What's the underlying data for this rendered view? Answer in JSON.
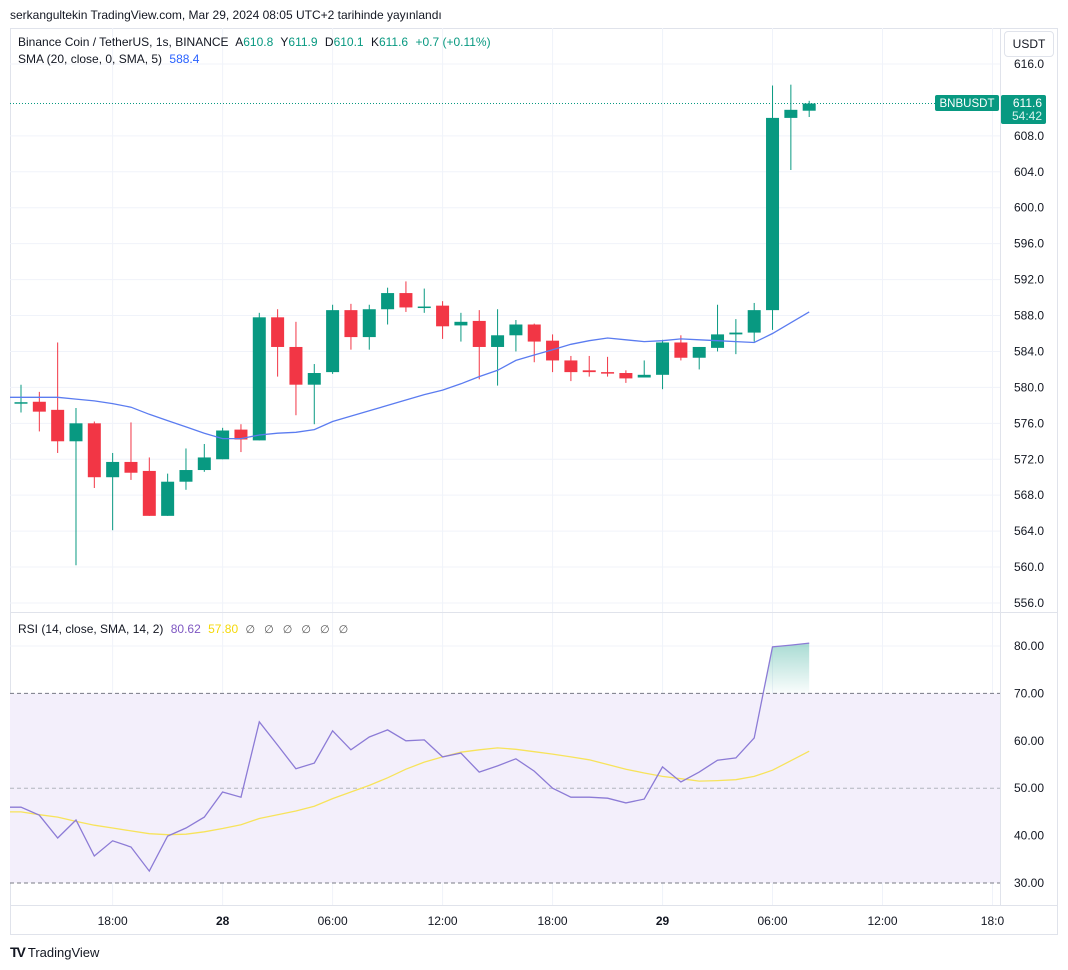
{
  "published": "serkangultekin TradingView.com, Mar 29, 2024 08:05 UTC+2 tarihinde yayınlandı",
  "symbol_line": {
    "title": "Binance Coin / TetherUS, 1s, BINANCE",
    "open_label": "A",
    "open": "610.8",
    "high_label": "Y",
    "high": "611.9",
    "low_label": "D",
    "low": "610.1",
    "close_label": "K",
    "close": "611.6",
    "change": "+0.7 (+0.11%)"
  },
  "sma_legend": {
    "label": "SMA (20, close, 0, SMA, 5)",
    "value": "588.4"
  },
  "rsi_legend": {
    "label": "RSI (14, close, SMA, 14, 2)",
    "value": "80.62",
    "sma_value": "57.80",
    "nulls": "∅ ∅ ∅ ∅ ∅ ∅"
  },
  "currency_button": "USDT",
  "price_tag": {
    "symbol": "BNBUSDT",
    "price": "611.6",
    "countdown": "54:42"
  },
  "footer": {
    "logo": "TV",
    "brand": "TradingView"
  },
  "colors": {
    "up": "#089981",
    "down": "#f23645",
    "sma": "#5b7cf0",
    "rsi": "#8c7bd6",
    "rsi_sma": "#f7e35b",
    "rsi_band": "#f3effb",
    "grid": "#f0f3fa"
  },
  "chart_data": [
    {
      "type": "candlestick",
      "ylim": [
        554,
        618
      ],
      "yticks": [
        "616.0",
        "608.0",
        "604.0",
        "600.0",
        "596.0",
        "592.0",
        "588.0",
        "584.0",
        "580.0",
        "576.0",
        "572.0",
        "568.0",
        "564.0",
        "560.0",
        "556.0"
      ],
      "xticks": [
        {
          "label": "18:00",
          "t": "03-27 18:00",
          "bold": false
        },
        {
          "label": "28",
          "t": "03-28 00:00",
          "bold": true
        },
        {
          "label": "06:00",
          "t": "03-28 06:00",
          "bold": false
        },
        {
          "label": "12:00",
          "t": "03-28 12:00",
          "bold": false
        },
        {
          "label": "18:00",
          "t": "03-28 18:00",
          "bold": false
        },
        {
          "label": "29",
          "t": "03-29 00:00",
          "bold": true
        },
        {
          "label": "06:00",
          "t": "03-29 06:00",
          "bold": false
        },
        {
          "label": "12:00",
          "t": "03-29 12:00",
          "bold": false
        },
        {
          "label": "18:0",
          "t": "03-29 18:00",
          "bold": false
        }
      ],
      "last_price": 611.6,
      "candles": [
        {
          "t": "03-27 13:00",
          "o": 578.3,
          "h": 580.3,
          "l": 577.2,
          "c": 578.35
        },
        {
          "t": "03-27 14:00",
          "o": 578.4,
          "h": 579.5,
          "l": 575.1,
          "c": 577.3
        },
        {
          "t": "03-27 15:00",
          "o": 577.5,
          "h": 585.0,
          "l": 572.7,
          "c": 574.0
        },
        {
          "t": "03-27 16:00",
          "o": 574.0,
          "h": 577.7,
          "l": 560.2,
          "c": 576.0
        },
        {
          "t": "03-27 17:00",
          "o": 576.0,
          "h": 576.2,
          "l": 568.8,
          "c": 570.0
        },
        {
          "t": "03-27 18:00",
          "o": 570.0,
          "h": 572.7,
          "l": 564.1,
          "c": 571.7
        },
        {
          "t": "03-27 19:00",
          "o": 571.7,
          "h": 576.1,
          "l": 569.7,
          "c": 570.5
        },
        {
          "t": "03-27 20:00",
          "o": 570.7,
          "h": 572.2,
          "l": 565.7,
          "c": 565.7
        },
        {
          "t": "03-27 21:00",
          "o": 565.7,
          "h": 570.4,
          "l": 565.7,
          "c": 569.5
        },
        {
          "t": "03-27 22:00",
          "o": 569.5,
          "h": 573.2,
          "l": 568.6,
          "c": 570.8
        },
        {
          "t": "03-27 23:00",
          "o": 570.8,
          "h": 573.7,
          "l": 570.6,
          "c": 572.2
        },
        {
          "t": "03-28 00:00",
          "o": 572.0,
          "h": 575.5,
          "l": 572.0,
          "c": 575.2
        },
        {
          "t": "03-28 01:00",
          "o": 575.3,
          "h": 575.9,
          "l": 572.8,
          "c": 574.2
        },
        {
          "t": "03-28 02:00",
          "o": 574.1,
          "h": 588.3,
          "l": 574.1,
          "c": 587.8
        },
        {
          "t": "03-28 03:00",
          "o": 587.8,
          "h": 588.7,
          "l": 581.2,
          "c": 584.5
        },
        {
          "t": "03-28 04:00",
          "o": 584.5,
          "h": 587.3,
          "l": 576.9,
          "c": 580.3
        },
        {
          "t": "03-28 05:00",
          "o": 580.3,
          "h": 582.6,
          "l": 575.9,
          "c": 581.6
        },
        {
          "t": "03-28 06:00",
          "o": 581.7,
          "h": 589.2,
          "l": 581.5,
          "c": 588.6
        },
        {
          "t": "03-28 07:00",
          "o": 588.6,
          "h": 589.3,
          "l": 584.2,
          "c": 585.6
        },
        {
          "t": "03-28 08:00",
          "o": 585.6,
          "h": 589.2,
          "l": 584.2,
          "c": 588.7
        },
        {
          "t": "03-28 09:00",
          "o": 588.7,
          "h": 591.1,
          "l": 587.0,
          "c": 590.5
        },
        {
          "t": "03-28 10:00",
          "o": 590.5,
          "h": 591.8,
          "l": 588.4,
          "c": 588.9
        },
        {
          "t": "03-28 11:00",
          "o": 588.9,
          "h": 591.0,
          "l": 588.3,
          "c": 589.0
        },
        {
          "t": "03-28 12:00",
          "o": 589.1,
          "h": 589.6,
          "l": 585.4,
          "c": 586.8
        },
        {
          "t": "03-28 13:00",
          "o": 586.9,
          "h": 588.3,
          "l": 585.1,
          "c": 587.3
        },
        {
          "t": "03-28 14:00",
          "o": 587.4,
          "h": 588.6,
          "l": 580.9,
          "c": 584.5
        },
        {
          "t": "03-28 15:00",
          "o": 584.5,
          "h": 588.7,
          "l": 580.2,
          "c": 585.8
        },
        {
          "t": "03-28 16:00",
          "o": 585.8,
          "h": 587.5,
          "l": 584.0,
          "c": 587.0
        },
        {
          "t": "03-28 17:00",
          "o": 587.0,
          "h": 587.1,
          "l": 582.8,
          "c": 585.1
        },
        {
          "t": "03-28 18:00",
          "o": 585.2,
          "h": 585.9,
          "l": 581.7,
          "c": 583.0
        },
        {
          "t": "03-28 19:00",
          "o": 583.0,
          "h": 583.5,
          "l": 580.7,
          "c": 581.7
        },
        {
          "t": "03-28 20:00",
          "o": 581.9,
          "h": 583.5,
          "l": 581.2,
          "c": 581.7
        },
        {
          "t": "03-28 21:00",
          "o": 581.7,
          "h": 583.4,
          "l": 581.2,
          "c": 581.6
        },
        {
          "t": "03-28 22:00",
          "o": 581.6,
          "h": 581.9,
          "l": 580.5,
          "c": 581.0
        },
        {
          "t": "03-28 23:00",
          "o": 581.1,
          "h": 583.0,
          "l": 581.1,
          "c": 581.4
        },
        {
          "t": "03-29 00:00",
          "o": 581.4,
          "h": 585.3,
          "l": 579.8,
          "c": 585.0
        },
        {
          "t": "03-29 01:00",
          "o": 585.0,
          "h": 585.8,
          "l": 583.0,
          "c": 583.3
        },
        {
          "t": "03-29 02:00",
          "o": 583.3,
          "h": 584.5,
          "l": 582.0,
          "c": 584.5
        },
        {
          "t": "03-29 03:00",
          "o": 584.4,
          "h": 589.2,
          "l": 584.0,
          "c": 585.9
        },
        {
          "t": "03-29 04:00",
          "o": 585.9,
          "h": 587.6,
          "l": 583.7,
          "c": 586.1
        },
        {
          "t": "03-29 05:00",
          "o": 586.1,
          "h": 589.4,
          "l": 585.1,
          "c": 588.6
        },
        {
          "t": "03-29 06:00",
          "o": 588.6,
          "h": 613.6,
          "l": 586.4,
          "c": 610.0
        },
        {
          "t": "03-29 07:00",
          "o": 610.0,
          "h": 613.7,
          "l": 604.2,
          "c": 610.9
        },
        {
          "t": "03-29 08:00",
          "o": 610.8,
          "h": 611.9,
          "l": 610.1,
          "c": 611.6
        }
      ],
      "sma": [
        578.9,
        578.9,
        578.9,
        578.7,
        578.5,
        578.2,
        577.8,
        577.0,
        576.3,
        575.6,
        574.9,
        574.3,
        574.3,
        574.7,
        574.9,
        575.0,
        575.3,
        576.2,
        576.8,
        577.4,
        578.0,
        578.6,
        579.2,
        579.7,
        580.4,
        581.2,
        581.9,
        583.0,
        583.6,
        584.2,
        584.8,
        585.2,
        585.5,
        585.3,
        585.1,
        585.2,
        585.4,
        585.3,
        585.2,
        585.1,
        585.0,
        586.0,
        587.2,
        588.4
      ]
    },
    {
      "type": "line",
      "ylim": [
        28,
        82
      ],
      "yticks": [
        "80.00",
        "70.00",
        "60.00",
        "50.00",
        "40.00",
        "30.00"
      ],
      "bands": {
        "upper": 70,
        "middle": 50,
        "lower": 30
      },
      "rsi": [
        46.0,
        44.3,
        39.5,
        43.3,
        35.7,
        38.9,
        37.6,
        32.5,
        39.9,
        41.6,
        43.9,
        49.2,
        48.1,
        64.0,
        59.1,
        54.1,
        55.3,
        62.1,
        58.1,
        60.8,
        62.3,
        60.0,
        60.2,
        56.6,
        57.4,
        53.4,
        54.7,
        56.2,
        53.6,
        50.0,
        48.1,
        48.1,
        47.9,
        46.9,
        47.7,
        54.5,
        51.3,
        53.4,
        55.9,
        56.4,
        60.6,
        79.8,
        80.2,
        80.62
      ],
      "rsi_sma": [
        45.0,
        44.4,
        43.9,
        43.0,
        42.2,
        41.6,
        41.0,
        40.4,
        40.2,
        40.3,
        40.8,
        41.5,
        42.3,
        43.6,
        44.4,
        45.2,
        46.2,
        47.8,
        49.2,
        50.6,
        52.2,
        54.0,
        55.5,
        56.6,
        57.6,
        58.1,
        58.5,
        58.2,
        57.7,
        57.2,
        56.6,
        56.0,
        55.0,
        54.0,
        53.2,
        52.5,
        52.0,
        51.5,
        51.6,
        51.8,
        52.5,
        53.8,
        55.8,
        57.8
      ]
    }
  ]
}
